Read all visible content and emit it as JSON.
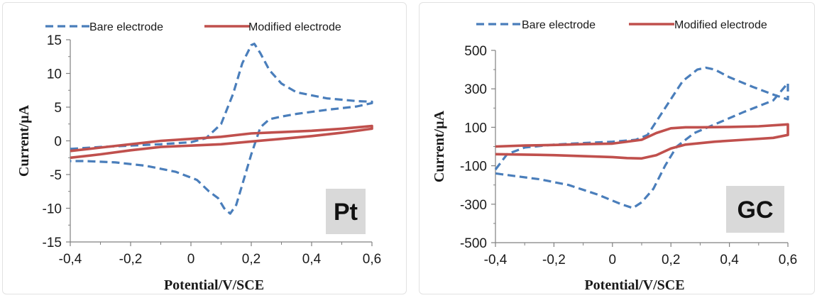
{
  "colors": {
    "bare": "#4a7ebb",
    "modified": "#c0504d",
    "badge_bg": "#d9d9d9",
    "axis": "#808080"
  },
  "chart_data": [
    {
      "type": "line",
      "label": "Pt",
      "xlabel": "Potential/V/SCE",
      "ylabel": "Current/µA",
      "xlim": [
        -0.4,
        0.6
      ],
      "ylim": [
        -15,
        15
      ],
      "xticks": [
        -0.4,
        -0.2,
        0,
        0.2,
        0.4,
        0.6
      ],
      "xtick_labels": [
        "-0,4",
        "-0,2",
        "0",
        "0,2",
        "0,4",
        "0,6"
      ],
      "yticks": [
        -15,
        -10,
        -5,
        0,
        5,
        10,
        15
      ],
      "ytick_labels": [
        "-15",
        "-10",
        "-5",
        "0",
        "5",
        "10",
        "15"
      ],
      "grid": false,
      "legend": "top",
      "series": [
        {
          "name": "Bare electrode",
          "style": "dashed",
          "x": [
            -0.4,
            -0.3,
            -0.2,
            -0.1,
            0.0,
            0.05,
            0.1,
            0.14,
            0.17,
            0.2,
            0.21,
            0.23,
            0.26,
            0.3,
            0.35,
            0.45,
            0.55,
            0.6,
            0.6,
            0.55,
            0.45,
            0.35,
            0.3,
            0.26,
            0.23,
            0.2,
            0.17,
            0.15,
            0.13,
            0.11,
            0.09,
            0.06,
            0.02,
            -0.05,
            -0.15,
            -0.25,
            -0.35,
            -0.4
          ],
          "y": [
            -1.2,
            -0.9,
            -0.7,
            -0.5,
            -0.2,
            0.4,
            2.5,
            7.0,
            11.5,
            14.2,
            14.4,
            13.0,
            10.5,
            8.5,
            7.2,
            6.3,
            5.9,
            5.8,
            5.6,
            5.1,
            4.6,
            4.0,
            3.6,
            3.2,
            2.0,
            -2.0,
            -6.5,
            -9.5,
            -10.8,
            -10.0,
            -8.5,
            -7.5,
            -5.8,
            -4.6,
            -3.7,
            -3.2,
            -3.0,
            -3.0
          ]
        },
        {
          "name": "Modified electrode",
          "style": "solid",
          "x": [
            -0.4,
            -0.3,
            -0.2,
            -0.1,
            0.0,
            0.1,
            0.2,
            0.3,
            0.4,
            0.5,
            0.6,
            0.6,
            0.5,
            0.4,
            0.3,
            0.2,
            0.1,
            0.0,
            -0.1,
            -0.2,
            -0.3,
            -0.4
          ],
          "y": [
            -1.5,
            -1.0,
            -0.5,
            0.0,
            0.3,
            0.6,
            1.1,
            1.3,
            1.5,
            1.8,
            2.2,
            1.8,
            1.2,
            0.7,
            0.3,
            -0.1,
            -0.5,
            -0.7,
            -0.9,
            -1.4,
            -2.0,
            -2.5
          ]
        }
      ]
    },
    {
      "type": "line",
      "label": "GC",
      "xlabel": "Potential/V/SCE",
      "ylabel": "Current/µA",
      "xlim": [
        -0.4,
        0.6
      ],
      "ylim": [
        -500,
        500
      ],
      "xticks": [
        -0.4,
        -0.2,
        0,
        0.2,
        0.4,
        0.6
      ],
      "xtick_labels": [
        "-0,4",
        "-0,2",
        "0",
        "0,2",
        "0,4",
        "0,6"
      ],
      "yticks": [
        -500,
        -300,
        -100,
        100,
        300,
        500
      ],
      "ytick_labels": [
        "-500",
        "-300",
        "-100",
        "100",
        "300",
        "500"
      ],
      "grid": false,
      "legend": "top",
      "series": [
        {
          "name": "Bare electrode",
          "style": "dashed",
          "x": [
            -0.4,
            -0.36,
            -0.3,
            -0.2,
            -0.1,
            0.0,
            0.08,
            0.12,
            0.18,
            0.24,
            0.29,
            0.32,
            0.35,
            0.4,
            0.48,
            0.55,
            0.6,
            0.6,
            0.55,
            0.45,
            0.35,
            0.28,
            0.22,
            0.18,
            0.14,
            0.1,
            0.07,
            0.03,
            -0.05,
            -0.15,
            -0.25,
            -0.35,
            -0.4
          ],
          "y": [
            -120,
            -40,
            -5,
            10,
            18,
            25,
            35,
            60,
            200,
            340,
            400,
            410,
            400,
            360,
            310,
            270,
            245,
            330,
            240,
            180,
            115,
            70,
            0,
            -100,
            -220,
            -290,
            -320,
            -300,
            -250,
            -200,
            -170,
            -150,
            -140
          ]
        },
        {
          "name": "Modified electrode",
          "style": "solid",
          "x": [
            -0.4,
            -0.3,
            -0.2,
            -0.1,
            0.0,
            0.1,
            0.15,
            0.2,
            0.25,
            0.3,
            0.4,
            0.5,
            0.6,
            0.6,
            0.55,
            0.45,
            0.35,
            0.25,
            0.2,
            0.15,
            0.1,
            0.05,
            0.0,
            -0.1,
            -0.2,
            -0.3,
            -0.4
          ],
          "y": [
            0,
            5,
            8,
            12,
            15,
            35,
            70,
            95,
            100,
            100,
            102,
            105,
            115,
            60,
            45,
            35,
            25,
            10,
            -10,
            -45,
            -62,
            -60,
            -55,
            -50,
            -45,
            -42,
            -40
          ]
        }
      ]
    }
  ]
}
